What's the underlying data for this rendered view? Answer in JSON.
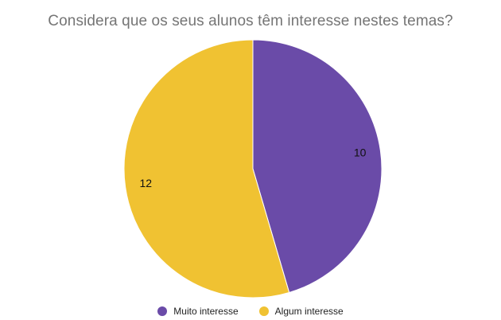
{
  "chart_data": {
    "type": "pie",
    "title": "Considera que os seus alunos têm interesse nestes temas?",
    "slices": [
      {
        "label": "Muito interesse",
        "value": 10,
        "color": "#6a4ba8"
      },
      {
        "label": "Algum interesse",
        "value": 12,
        "color": "#f0c232"
      }
    ],
    "legend_position": "bottom",
    "show_values": true
  }
}
